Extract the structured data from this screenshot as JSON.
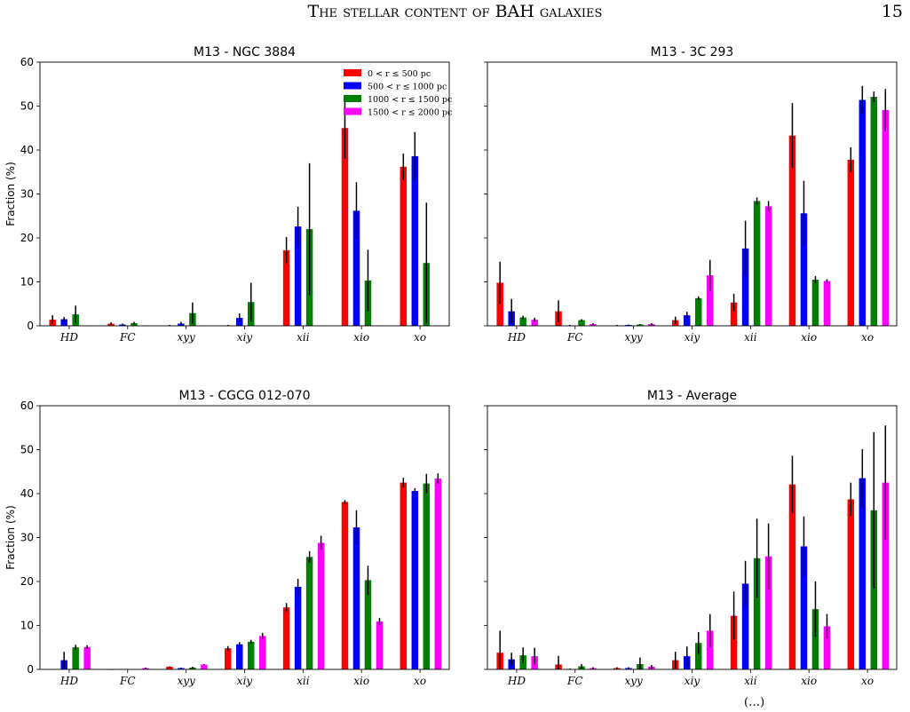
{
  "header": {
    "running_title": "The stellar content of BAH galaxies",
    "page_number": "15"
  },
  "footer": {
    "fragment": "(…)"
  },
  "colors": {
    "0 < r ≤ 500 pc": "#ff0000",
    "500 < r ≤ 1000 pc": "#0000ff",
    "1000 < r ≤ 1500 pc": "#008000",
    "1500 < r ≤ 2000 pc": "#ff00ff"
  },
  "chart_data": [
    {
      "type": "bar",
      "title": "M13 - NGC 3884",
      "xlabel": "",
      "ylabel": "Fraction (%)",
      "ylim": [
        0,
        60
      ],
      "yticks": [
        0,
        10,
        20,
        30,
        40,
        50,
        60
      ],
      "categories": [
        "HD",
        "FC",
        "xyy",
        "xiy",
        "xii",
        "xio",
        "xo"
      ],
      "legend": {
        "placement": "top-right",
        "entries": [
          "0 < r ≤ 500 pc",
          "500 < r ≤ 1000 pc",
          "1000 < r ≤ 1500 pc",
          "1500 < r ≤ 2000 pc"
        ]
      },
      "series": [
        {
          "name": "0 < r ≤ 500 pc",
          "values": [
            1.4,
            0.5,
            0.1,
            0.1,
            17.2,
            45.0,
            36.2
          ],
          "errors": [
            1.0,
            0.3,
            0.1,
            0.1,
            3.0,
            7.0,
            3.0
          ]
        },
        {
          "name": "500 < r ≤ 1000 pc",
          "values": [
            1.5,
            0.3,
            0.5,
            1.8,
            22.6,
            26.2,
            38.6
          ],
          "errors": [
            0.5,
            0.2,
            0.4,
            1.0,
            4.5,
            6.5,
            5.5
          ]
        },
        {
          "name": "1000 < r ≤ 1500 pc",
          "values": [
            2.6,
            0.6,
            2.9,
            5.4,
            22.0,
            10.3,
            14.3
          ],
          "errors": [
            2.0,
            0.3,
            2.4,
            4.4,
            15.0,
            7.0,
            13.7
          ]
        },
        {
          "name": "1500 < r ≤ 2000 pc",
          "values": [
            0.1,
            0.1,
            0.1,
            0.1,
            0.1,
            0.1,
            0.1
          ],
          "errors": [
            0,
            0,
            0,
            0,
            0,
            0,
            0
          ]
        }
      ]
    },
    {
      "type": "bar",
      "title": "M13 - 3C 293",
      "xlabel": "",
      "ylabel": "",
      "ylim": [
        0,
        60
      ],
      "yticks": [
        0,
        10,
        20,
        30,
        40,
        50,
        60
      ],
      "categories": [
        "HD",
        "FC",
        "xyy",
        "xiy",
        "xii",
        "xio",
        "xo"
      ],
      "series": [
        {
          "name": "0 < r ≤ 500 pc",
          "values": [
            9.8,
            3.3,
            0.1,
            1.3,
            5.3,
            43.3,
            37.8
          ],
          "errors": [
            4.8,
            2.5,
            0.1,
            0.8,
            2.0,
            7.4,
            2.8
          ]
        },
        {
          "name": "500 < r ≤ 1000 pc",
          "values": [
            3.3,
            0.1,
            0.2,
            2.4,
            17.6,
            25.6,
            51.4
          ],
          "errors": [
            2.8,
            0.1,
            0.1,
            0.8,
            6.3,
            7.4,
            3.2
          ]
        },
        {
          "name": "1000 < r ≤ 1500 pc",
          "values": [
            1.9,
            1.3,
            0.3,
            6.3,
            28.4,
            10.5,
            52.1
          ],
          "errors": [
            0.4,
            0.2,
            0.1,
            0.4,
            0.8,
            0.8,
            1.2
          ]
        },
        {
          "name": "1500 < r ≤ 2000 pc",
          "values": [
            1.4,
            0.4,
            0.4,
            11.5,
            27.2,
            10.2,
            49.1
          ],
          "errors": [
            0.4,
            0.2,
            0.2,
            3.5,
            1.2,
            0.4,
            4.8
          ]
        }
      ]
    },
    {
      "type": "bar",
      "title": "M13 - CGCG 012-070",
      "xlabel": "",
      "ylabel": "Fraction (%)",
      "ylim": [
        0,
        60
      ],
      "yticks": [
        0,
        10,
        20,
        30,
        40,
        50,
        60
      ],
      "categories": [
        "HD",
        "FC",
        "xyy",
        "xiy",
        "xii",
        "xio",
        "xo"
      ],
      "series": [
        {
          "name": "0 < r ≤ 500 pc",
          "values": [
            0.1,
            0.0,
            0.6,
            4.8,
            14.1,
            38.1,
            42.5
          ],
          "errors": [
            0,
            0,
            0.1,
            0.5,
            1.0,
            0.4,
            1.1
          ]
        },
        {
          "name": "500 < r ≤ 1000 pc",
          "values": [
            2.1,
            0.1,
            0.3,
            5.7,
            18.8,
            32.3,
            40.6
          ],
          "errors": [
            1.9,
            0,
            0.1,
            0.5,
            1.8,
            3.9,
            0.6
          ]
        },
        {
          "name": "1000 < r ≤ 1500 pc",
          "values": [
            5.0,
            0.1,
            0.4,
            6.3,
            25.6,
            20.3,
            42.3
          ],
          "errors": [
            0.6,
            0,
            0.2,
            0.4,
            1.3,
            3.3,
            2.2
          ]
        },
        {
          "name": "1500 < r ≤ 2000 pc",
          "values": [
            5.1,
            0.3,
            1.1,
            7.6,
            28.8,
            10.9,
            43.4
          ],
          "errors": [
            0.4,
            0.1,
            0.1,
            0.7,
            1.6,
            0.8,
            1.2
          ]
        }
      ]
    },
    {
      "type": "bar",
      "title": "M13 - Average",
      "xlabel": "",
      "ylabel": "",
      "ylim": [
        0,
        60
      ],
      "yticks": [
        0,
        10,
        20,
        30,
        40,
        50,
        60
      ],
      "categories": [
        "HD",
        "FC",
        "xyy",
        "xiy",
        "xii",
        "xio",
        "xo"
      ],
      "series": [
        {
          "name": "0 < r ≤ 500 pc",
          "values": [
            3.8,
            1.1,
            0.3,
            2.1,
            12.2,
            42.1,
            38.7
          ],
          "errors": [
            5.0,
            2.0,
            0.2,
            1.9,
            5.5,
            6.5,
            3.8
          ]
        },
        {
          "name": "500 < r ≤ 1000 pc",
          "values": [
            2.3,
            0.1,
            0.3,
            3.0,
            19.5,
            28.0,
            43.5
          ],
          "errors": [
            1.5,
            0.1,
            0.2,
            2.2,
            5.2,
            6.8,
            6.6
          ]
        },
        {
          "name": "1000 < r ≤ 1500 pc",
          "values": [
            3.2,
            0.7,
            1.2,
            6.0,
            25.3,
            13.7,
            36.2
          ],
          "errors": [
            1.8,
            0.5,
            1.5,
            2.5,
            9.0,
            6.3,
            17.8
          ]
        },
        {
          "name": "1500 < r ≤ 2000 pc",
          "values": [
            3.0,
            0.3,
            0.6,
            8.8,
            25.7,
            9.8,
            42.5
          ],
          "errors": [
            1.9,
            0.2,
            0.4,
            3.8,
            7.5,
            2.8,
            13.0
          ]
        }
      ]
    }
  ]
}
